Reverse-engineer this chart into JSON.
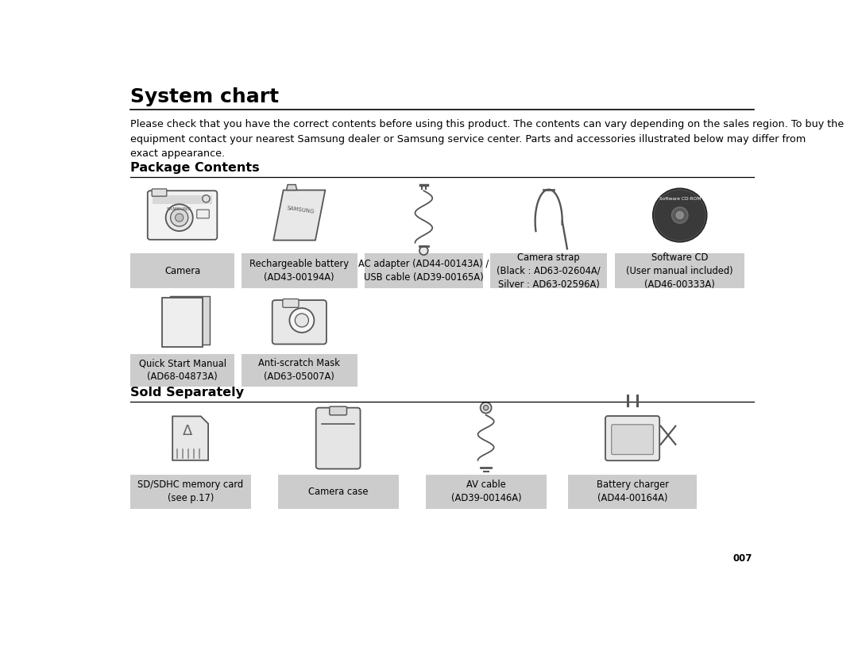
{
  "title": "System chart",
  "description": "Please check that you have the correct contents before using this product. The contents can vary depending on the sales region. To buy the\nequipment contact your nearest Samsung dealer or Samsung service center. Parts and accessories illustrated below may differ from\nexact appearance.",
  "section1": "Package Contents",
  "section2": "Sold Separately",
  "bg_color": "#ffffff",
  "label_bg": "#cccccc",
  "page_num": "007",
  "label_texts_r1": [
    "Camera",
    "Rechargeable battery\n(AD43-00194A)",
    "AC adapter (AD44-00143A) /\nUSB cable (AD39-00165A)",
    "Camera strap\n(Black : AD63-02604A/\nSilver : AD63-02596A)",
    "Software CD\n(User manual included)\n(AD46-00333A)"
  ],
  "label_texts_r2": [
    "Quick Start Manual\n(AD68-04873A)",
    "Anti-scratch Mask\n(AD63-05007A)"
  ],
  "label_texts_r3": [
    "SD/SDHC memory card\n(see p.17)",
    "Camera case",
    "AV cable\n(AD39-00146A)",
    "Battery charger\n(AD44-00164A)"
  ]
}
